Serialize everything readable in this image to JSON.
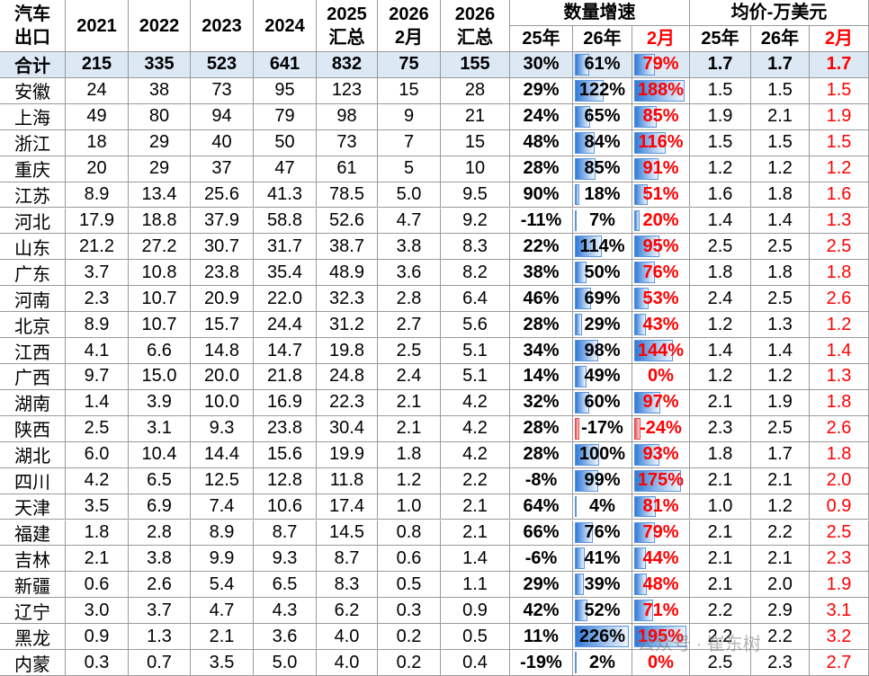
{
  "header": {
    "corner": [
      "汽车",
      "出口"
    ],
    "years": [
      "2021",
      "2022",
      "2023",
      "2024"
    ],
    "total_2025": [
      "2025",
      "汇总"
    ],
    "feb_2026": [
      "2026",
      "2月"
    ],
    "total_2026": [
      "2026",
      "汇总"
    ],
    "growth": {
      "title": "数量增速",
      "columns": [
        "25年",
        "26年",
        "2月"
      ]
    },
    "price": {
      "title": "均价-万美元",
      "columns": [
        "25年",
        "26年",
        "2月"
      ]
    }
  },
  "table": {
    "rows": [
      [
        "合计",
        "215",
        "335",
        "523",
        "641",
        "832",
        "75",
        "155",
        "30%",
        "61%",
        "79%",
        "1.7",
        "1.7",
        "1.7"
      ],
      [
        "安徽",
        "24",
        "38",
        "73",
        "95",
        "123",
        "15",
        "28",
        "29%",
        "122%",
        "188%",
        "1.5",
        "1.5",
        "1.5"
      ],
      [
        "上海",
        "49",
        "80",
        "94",
        "79",
        "98",
        "9",
        "21",
        "24%",
        "65%",
        "85%",
        "1.9",
        "2.1",
        "1.9"
      ],
      [
        "浙江",
        "18",
        "29",
        "40",
        "50",
        "73",
        "7",
        "15",
        "48%",
        "84%",
        "116%",
        "1.5",
        "1.5",
        "1.5"
      ],
      [
        "重庆",
        "20",
        "29",
        "37",
        "47",
        "61",
        "5",
        "10",
        "28%",
        "85%",
        "91%",
        "1.2",
        "1.2",
        "1.2"
      ],
      [
        "江苏",
        "8.9",
        "13.4",
        "25.6",
        "41.3",
        "78.5",
        "5.0",
        "9.5",
        "90%",
        "18%",
        "51%",
        "1.6",
        "1.8",
        "1.6"
      ],
      [
        "河北",
        "17.9",
        "18.8",
        "37.9",
        "58.8",
        "52.6",
        "4.7",
        "9.2",
        "-11%",
        "7%",
        "20%",
        "1.4",
        "1.4",
        "1.3"
      ],
      [
        "山东",
        "21.2",
        "27.2",
        "30.7",
        "31.7",
        "38.7",
        "3.8",
        "8.3",
        "22%",
        "114%",
        "95%",
        "2.5",
        "2.5",
        "2.5"
      ],
      [
        "广东",
        "3.7",
        "10.8",
        "23.8",
        "35.4",
        "48.9",
        "3.6",
        "8.2",
        "38%",
        "50%",
        "76%",
        "1.8",
        "1.8",
        "1.8"
      ],
      [
        "河南",
        "2.3",
        "10.7",
        "20.9",
        "22.0",
        "32.3",
        "2.8",
        "6.4",
        "46%",
        "69%",
        "53%",
        "2.4",
        "2.5",
        "2.6"
      ],
      [
        "北京",
        "8.9",
        "10.7",
        "15.7",
        "24.4",
        "31.2",
        "2.7",
        "5.6",
        "28%",
        "29%",
        "43%",
        "1.2",
        "1.3",
        "1.2"
      ],
      [
        "江西",
        "4.1",
        "6.6",
        "14.8",
        "14.7",
        "19.8",
        "2.5",
        "5.1",
        "34%",
        "98%",
        "144%",
        "1.4",
        "1.4",
        "1.4"
      ],
      [
        "广西",
        "9.7",
        "15.0",
        "20.0",
        "21.8",
        "24.8",
        "2.4",
        "5.1",
        "14%",
        "49%",
        "0%",
        "1.2",
        "1.2",
        "1.3"
      ],
      [
        "湖南",
        "1.4",
        "3.9",
        "10.0",
        "16.9",
        "22.3",
        "2.1",
        "4.2",
        "32%",
        "60%",
        "97%",
        "2.1",
        "1.9",
        "1.8"
      ],
      [
        "陕西",
        "2.5",
        "3.1",
        "9.3",
        "23.8",
        "30.4",
        "2.1",
        "4.2",
        "28%",
        "-17%",
        "-24%",
        "2.3",
        "2.5",
        "2.6"
      ],
      [
        "湖北",
        "6.0",
        "10.4",
        "14.4",
        "15.6",
        "19.9",
        "1.8",
        "4.2",
        "28%",
        "100%",
        "93%",
        "1.8",
        "1.7",
        "1.8"
      ],
      [
        "四川",
        "4.2",
        "6.5",
        "12.5",
        "12.8",
        "11.8",
        "1.2",
        "2.2",
        "-8%",
        "99%",
        "175%",
        "2.1",
        "2.1",
        "2.0"
      ],
      [
        "天津",
        "3.5",
        "6.9",
        "7.4",
        "10.6",
        "17.4",
        "1.0",
        "2.1",
        "64%",
        "4%",
        "81%",
        "1.0",
        "1.2",
        "0.9"
      ],
      [
        "福建",
        "1.8",
        "2.8",
        "8.9",
        "8.7",
        "14.5",
        "0.8",
        "2.1",
        "66%",
        "76%",
        "79%",
        "2.1",
        "2.2",
        "2.5"
      ],
      [
        "吉林",
        "2.1",
        "3.8",
        "9.9",
        "9.3",
        "8.7",
        "0.6",
        "1.4",
        "-6%",
        "41%",
        "44%",
        "2.1",
        "2.1",
        "2.3"
      ],
      [
        "新疆",
        "0.6",
        "2.6",
        "5.4",
        "6.5",
        "8.3",
        "0.5",
        "1.1",
        "29%",
        "39%",
        "48%",
        "2.1",
        "2.0",
        "1.9"
      ],
      [
        "辽宁",
        "3.0",
        "3.7",
        "4.7",
        "4.3",
        "6.2",
        "0.3",
        "0.9",
        "42%",
        "52%",
        "71%",
        "2.2",
        "2.9",
        "3.1"
      ],
      [
        "黑龙",
        "0.9",
        "1.3",
        "2.1",
        "3.6",
        "4.0",
        "0.2",
        "0.5",
        "11%",
        "226%",
        "195%",
        "2.2",
        "2.2",
        "3.2"
      ],
      [
        "内蒙",
        "0.3",
        "0.7",
        "3.5",
        "5.0",
        "4.0",
        "0.2",
        "0.4",
        "-19%",
        "2%",
        "0%",
        "2.5",
        "2.3",
        "2.7"
      ]
    ]
  },
  "watermark": "公众号 · 崔东树"
}
